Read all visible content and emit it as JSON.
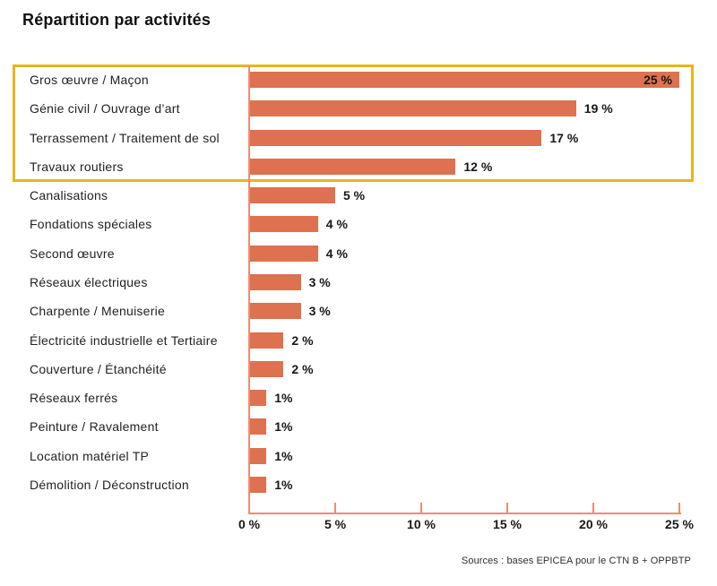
{
  "colors": {
    "bar": "#de714f",
    "axis_line": "#f08b72",
    "highlight_border": "#ecb31e",
    "text": "#1d1d1b"
  },
  "chart_data": {
    "type": "bar",
    "orientation": "horizontal",
    "title": "Répartition par activités",
    "categories": [
      "Gros œuvre / Maçon",
      "Génie civil / Ouvrage d’art",
      "Terrassement / Traitement de sol",
      "Travaux routiers",
      "Canalisations",
      "Fondations spéciales",
      "Second œuvre",
      "Réseaux électriques",
      "Charpente / Menuiserie",
      "Électricité industrielle et Tertiaire",
      "Couverture / Étanchéité",
      "Réseaux ferrés",
      "Peinture / Ravalement",
      "Location matériel TP",
      "Démolition / Déconstruction"
    ],
    "values": [
      25,
      19,
      17,
      12,
      5,
      4,
      4,
      3,
      3,
      2,
      2,
      1,
      1,
      1,
      1
    ],
    "value_labels": [
      "25 %",
      "19 %",
      "17 %",
      "12 %",
      "5 %",
      "4 %",
      "4 %",
      "3 %",
      "3 %",
      "2 %",
      "2 %",
      "1%",
      "1%",
      "1%",
      "1%"
    ],
    "xlim": [
      0,
      25
    ],
    "x_ticks": [
      0,
      5,
      10,
      15,
      20,
      25
    ],
    "x_tick_labels": [
      "0 %",
      "5 %",
      "10 %",
      "15 %",
      "20 %",
      "25 %"
    ],
    "highlighted_rows": [
      0,
      1,
      2,
      3
    ],
    "grid": false,
    "legend": false,
    "source": "Sources : bases EPICEA pour le CTN B + OPPBTP"
  }
}
